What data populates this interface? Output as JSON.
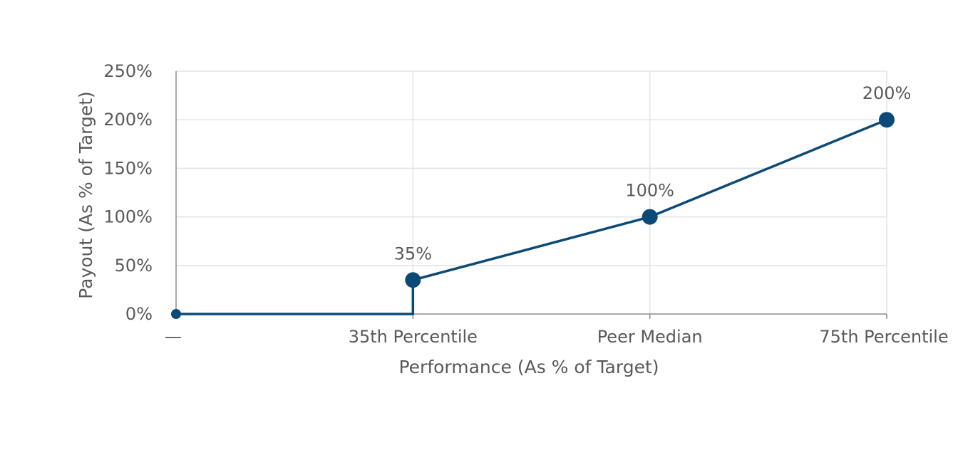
{
  "chart_data": {
    "type": "line",
    "title": "",
    "xlabel": "Performance (As % of Target)",
    "ylabel": "Payout (As % of Target)",
    "categories": [
      "—",
      "35th Percentile",
      "Peer Median",
      "75th Percentile"
    ],
    "y_ticks": [
      "0%",
      "50%",
      "100%",
      "150%",
      "200%",
      "250%"
    ],
    "ylim": [
      0,
      250
    ],
    "grid": true,
    "legend": "none",
    "line_color": "#0b4a77",
    "series": [
      {
        "points": [
          {
            "x": "—",
            "y": 0
          },
          {
            "x": "35th Percentile",
            "y": 0
          },
          {
            "x": "35th Percentile",
            "y": 35
          },
          {
            "x": "Peer Median",
            "y": 100
          },
          {
            "x": "75th Percentile",
            "y": 200
          }
        ]
      }
    ],
    "marker_points": [
      {
        "x": "—",
        "y": 0,
        "label": ""
      },
      {
        "x": "35th Percentile",
        "y": 35,
        "label": "35%"
      },
      {
        "x": "Peer Median",
        "y": 100,
        "label": "100%"
      },
      {
        "x": "75th Percentile",
        "y": 200,
        "label": "200%"
      }
    ]
  }
}
